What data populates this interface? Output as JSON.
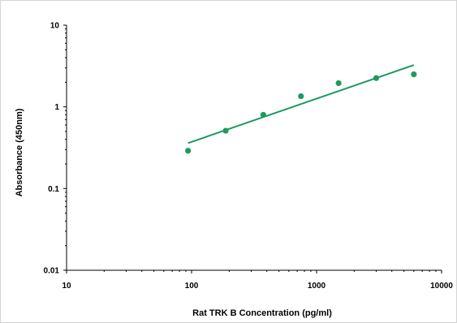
{
  "chart_data": {
    "type": "scatter",
    "title": "",
    "xlabel": "Rat TRK B Concentration (pg/ml)",
    "ylabel": "Absorbance (450nm)",
    "xscale": "log",
    "yscale": "log",
    "xlim": [
      10,
      10000
    ],
    "ylim": [
      0.01,
      10
    ],
    "x_ticks": [
      "10",
      "100",
      "1000",
      "10000"
    ],
    "y_ticks": [
      "0.01",
      "0.1",
      "1",
      "10"
    ],
    "grid": false,
    "legend": "none",
    "series": [
      {
        "points": [
          {
            "x": 93.75,
            "y": 0.29
          },
          {
            "x": 187.5,
            "y": 0.51
          },
          {
            "x": 375,
            "y": 0.8
          },
          {
            "x": 750,
            "y": 1.35
          },
          {
            "x": 1500,
            "y": 1.95
          },
          {
            "x": 3000,
            "y": 2.25
          },
          {
            "x": 6000,
            "y": 2.5
          }
        ],
        "trendline": {
          "type": "power",
          "from": {
            "x": 93.75,
            "y": 0.36
          },
          "to": {
            "x": 6000,
            "y": 3.25
          }
        },
        "color": "#1e9a60"
      }
    ]
  }
}
